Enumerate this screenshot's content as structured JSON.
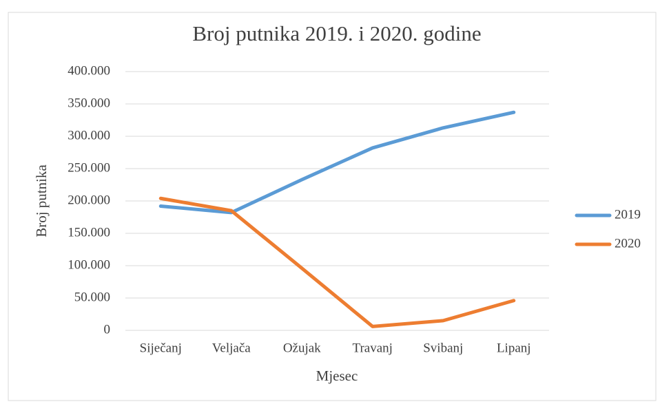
{
  "chart_data": {
    "type": "line",
    "title": "Broj putnika 2019. i 2020. godine",
    "x_label": "Mjesec",
    "y_label": "Broj putnika",
    "categories": [
      "Siječanj",
      "Veljača",
      "Ožujak",
      "Travanj",
      "Svibanj",
      "Lipanj"
    ],
    "series": [
      {
        "name": "2019",
        "color": "#5b9bd5",
        "values": [
          192000,
          182000,
          233000,
          282000,
          313000,
          337000
        ]
      },
      {
        "name": "2020",
        "color": "#ed7d31",
        "values": [
          204000,
          185000,
          96000,
          6000,
          15000,
          46000
        ]
      }
    ],
    "ylim": [
      0,
      400000
    ],
    "yticks": [
      0,
      {
        "value": 50000,
        "label": "50.000"
      },
      {
        "value": 100000,
        "label": "100.000"
      },
      {
        "value": 150000,
        "label": "150.000"
      },
      {
        "value": 200000,
        "label": "200.000"
      },
      {
        "value": 250000,
        "label": "250.000"
      },
      {
        "value": 300000,
        "label": "300.000"
      },
      {
        "value": 350000,
        "label": "350.000"
      },
      {
        "value": 400000,
        "label": "400.000"
      }
    ],
    "grid": true,
    "legend": "right"
  }
}
